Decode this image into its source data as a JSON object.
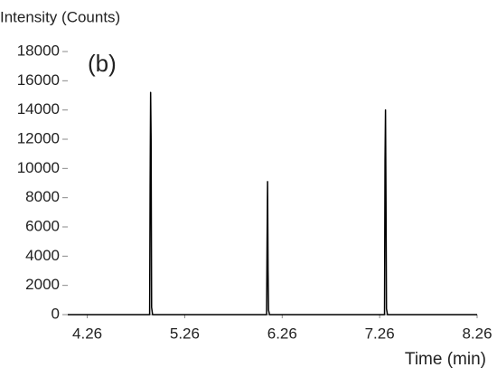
{
  "chart_data": {
    "type": "line",
    "title": "Intensity (Counts)",
    "annotation": "(b)",
    "x_label": "Time (min)",
    "x": [
      4.06,
      4.9,
      4.905,
      4.91,
      4.915,
      4.92,
      4.93,
      6.1,
      6.105,
      6.11,
      6.115,
      6.12,
      6.13,
      7.31,
      7.315,
      7.32,
      7.325,
      7.33,
      7.34,
      8.26
    ],
    "values": [
      0,
      0,
      9000,
      15200,
      12000,
      500,
      0,
      0,
      5000,
      9100,
      3000,
      300,
      0,
      0,
      10500,
      14000,
      8000,
      400,
      0,
      0
    ],
    "color": "#000000",
    "xlim": [
      4.06,
      8.26
    ],
    "xticks": [
      4.26,
      5.26,
      6.26,
      7.26,
      8.26
    ],
    "ylim": [
      0,
      18000
    ],
    "yticks": [
      0,
      2000,
      4000,
      6000,
      8000,
      10000,
      12000,
      14000,
      16000,
      18000
    ]
  }
}
